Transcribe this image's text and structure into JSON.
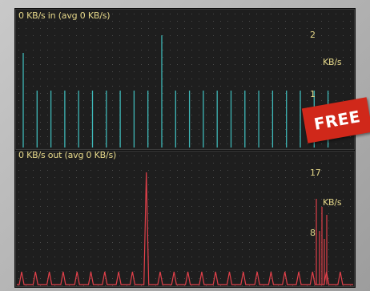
{
  "in_panel": {
    "title": "0 KB/s in (avg 0 KB/s)",
    "axis_max": "2",
    "axis_unit": "KB/s",
    "axis_mid": "1",
    "color": "#3fb8b8"
  },
  "out_panel": {
    "title": "0 KB/s out (avg 0 KB/s)",
    "axis_max": "17",
    "axis_unit": "KB/s",
    "axis_mid": "8",
    "color": "#e0404a"
  },
  "badge": {
    "text": "FREE",
    "color": "#d0281a"
  }
}
